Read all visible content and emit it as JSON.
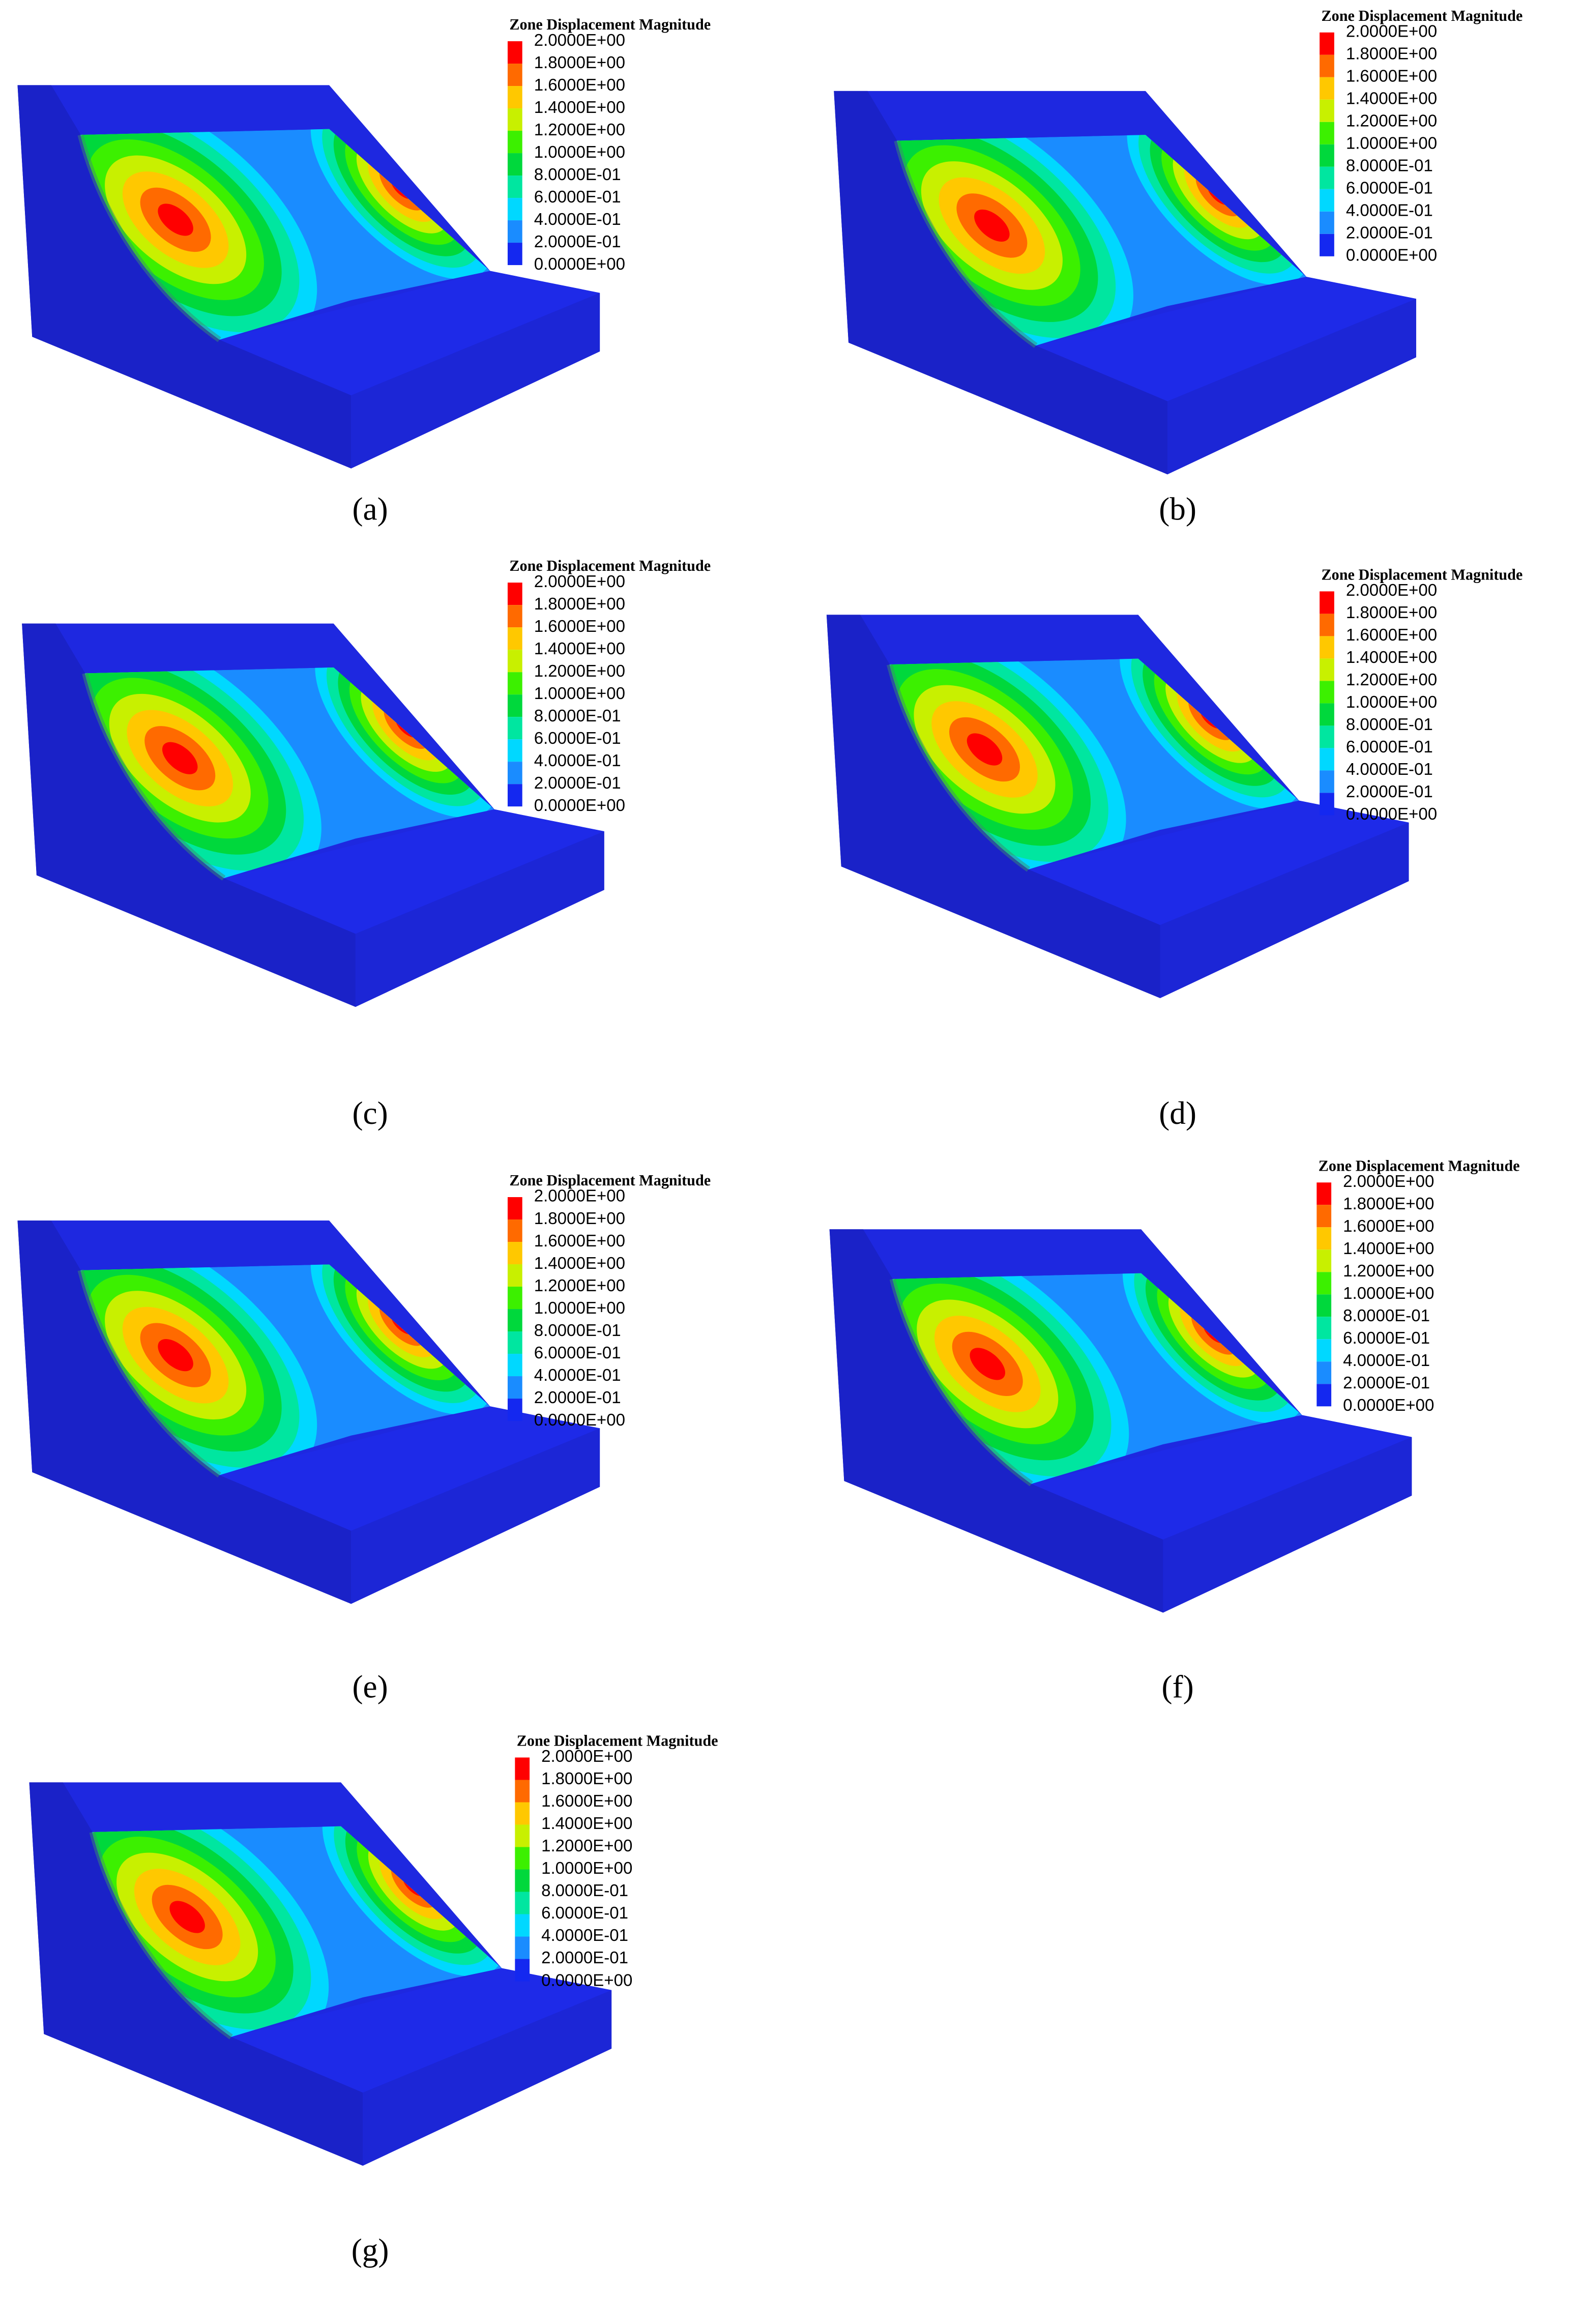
{
  "legend": {
    "title": "Zone Displacement Magnitude",
    "labels": [
      "2.0000E+00",
      "1.8000E+00",
      "1.6000E+00",
      "1.4000E+00",
      "1.2000E+00",
      "1.0000E+00",
      "8.0000E-01",
      "6.0000E-01",
      "4.0000E-01",
      "2.0000E-01",
      "0.0000E+00"
    ],
    "colors": [
      "#ff0000",
      "#ff6a00",
      "#ffc800",
      "#c8f000",
      "#3cf000",
      "#00d83c",
      "#00e6a0",
      "#00d8ff",
      "#1a8cff",
      "#1428f0"
    ]
  },
  "panels": [
    {
      "label": "(a)"
    },
    {
      "label": "(b)"
    },
    {
      "label": "(c)"
    },
    {
      "label": "(d)"
    },
    {
      "label": "(e)"
    },
    {
      "label": "(f)"
    },
    {
      "label": "(g)"
    }
  ]
}
